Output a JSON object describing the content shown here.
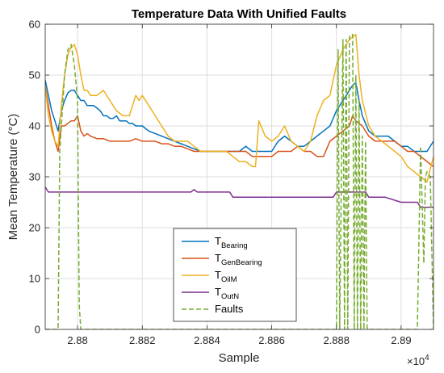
{
  "chart_data": {
    "type": "line",
    "title": "Temperature Data With Unified Faults",
    "xlabel": "Sample",
    "ylabel": "Mean Temperature (°C)",
    "x_exponent_label": "×10",
    "x_exponent_power": "4",
    "xlim": [
      28790,
      28910
    ],
    "ylim": [
      0,
      60
    ],
    "xticks": [
      28800,
      28820,
      28840,
      28860,
      28880,
      28900
    ],
    "xtick_labels": [
      "2.88",
      "2.882",
      "2.884",
      "2.886",
      "2.888",
      "2.89"
    ],
    "yticks": [
      0,
      10,
      20,
      30,
      40,
      50,
      60
    ],
    "ytick_labels": [
      "0",
      "10",
      "20",
      "30",
      "40",
      "50",
      "60"
    ],
    "grid": true,
    "legend_position": "bottom-center",
    "series": [
      {
        "name": "T_Bearing",
        "label_main": "T",
        "label_sub": "Bearing",
        "color": "#0072BD",
        "style": "solid",
        "x": [
          28790,
          28791,
          28792,
          28793,
          28794,
          28795,
          28796,
          28797,
          28798,
          28799,
          28800,
          28801,
          28802,
          28803,
          28804,
          28805,
          28806,
          28807,
          28808,
          28809,
          28810,
          28811,
          28812,
          28813,
          28814,
          28815,
          28816,
          28817,
          28818,
          28819,
          28820,
          28822,
          28824,
          28826,
          28828,
          28830,
          28832,
          28834,
          28836,
          28838,
          28840,
          28842,
          28844,
          28846,
          28848,
          28850,
          28852,
          28854,
          28856,
          28858,
          28860,
          28862,
          28864,
          28866,
          28868,
          28870,
          28872,
          28874,
          28876,
          28878,
          28880,
          28882,
          28884,
          28885,
          28886,
          28887,
          28888,
          28890,
          28892,
          28894,
          28896,
          28898,
          28900,
          28902,
          28904,
          28906,
          28908,
          28910
        ],
        "y": [
          49,
          46,
          43,
          41,
          39,
          43,
          45,
          46.5,
          47,
          47,
          46,
          45,
          45,
          44,
          44,
          44,
          43.5,
          43,
          42,
          42,
          41.5,
          41.5,
          42,
          41,
          41,
          41,
          40.5,
          40.5,
          40,
          40,
          40,
          39,
          38.5,
          38,
          37.5,
          37,
          36.5,
          36,
          35.5,
          35,
          35,
          35,
          35,
          35,
          35,
          35,
          36,
          35,
          35,
          35,
          35,
          37,
          38,
          37,
          36,
          36,
          37,
          38,
          39,
          40,
          43,
          45,
          47,
          48,
          48.5,
          45,
          42,
          39,
          38,
          38,
          38,
          37,
          36,
          36,
          35,
          35,
          35,
          37
        ]
      },
      {
        "name": "T_GenBearing",
        "label_main": "T",
        "label_sub": "GenBearing",
        "color": "#D95319",
        "style": "solid",
        "x": [
          28790,
          28791,
          28792,
          28793,
          28794,
          28795,
          28796,
          28797,
          28798,
          28799,
          28800,
          28801,
          28802,
          28803,
          28804,
          28806,
          28808,
          28810,
          28812,
          28814,
          28816,
          28818,
          28820,
          28822,
          28824,
          28826,
          28828,
          28830,
          28832,
          28834,
          28836,
          28838,
          28840,
          28842,
          28844,
          28846,
          28848,
          28850,
          28852,
          28854,
          28856,
          28858,
          28860,
          28862,
          28864,
          28866,
          28868,
          28870,
          28872,
          28874,
          28876,
          28878,
          28880,
          28882,
          28884,
          28885,
          28886,
          28888,
          28890,
          28892,
          28894,
          28896,
          28898,
          28900,
          28902,
          28904,
          28906,
          28908,
          28910
        ],
        "y": [
          48,
          44,
          40,
          37,
          35,
          40,
          40,
          40.5,
          41,
          41,
          42,
          39,
          38,
          38.5,
          38,
          37.5,
          37.5,
          37,
          37,
          37,
          37,
          37.5,
          37,
          37,
          37,
          36.5,
          36.5,
          36,
          36,
          35.5,
          35,
          35,
          35,
          35,
          35,
          35,
          35,
          35,
          35,
          34,
          34,
          34,
          34,
          35,
          35,
          35,
          36,
          35,
          35,
          34,
          34,
          37,
          38,
          39,
          40,
          42,
          41,
          40,
          38,
          37,
          37,
          37,
          37,
          36,
          35,
          35,
          34,
          33,
          32
        ]
      },
      {
        "name": "T_OilM",
        "label_main": "T",
        "label_sub": "OilM",
        "color": "#EDB120",
        "style": "solid",
        "x": [
          28790,
          28791,
          28792,
          28793,
          28794,
          28795,
          28796,
          28797,
          28798,
          28799,
          28800,
          28801,
          28802,
          28803,
          28804,
          28806,
          28808,
          28810,
          28812,
          28814,
          28816,
          28818,
          28819,
          28820,
          28822,
          28824,
          28826,
          28828,
          28830,
          28832,
          28834,
          28836,
          28838,
          28840,
          28842,
          28844,
          28846,
          28848,
          28850,
          28852,
          28854,
          28855,
          28856,
          28858,
          28860,
          28862,
          28864,
          28866,
          28868,
          28870,
          28872,
          28874,
          28876,
          28878,
          28880,
          28882,
          28884,
          28885,
          28886,
          28887,
          28888,
          28890,
          28892,
          28894,
          28896,
          28898,
          28900,
          28902,
          28904,
          28906,
          28908,
          28910
        ],
        "y": [
          48,
          42,
          39,
          37,
          36,
          44,
          50,
          54,
          55.5,
          56,
          54,
          50,
          47,
          47,
          46,
          46,
          47,
          45,
          43,
          42,
          42,
          46,
          45,
          46,
          44,
          42,
          40,
          38,
          37,
          37,
          37,
          36,
          35,
          35,
          35,
          35,
          35,
          34,
          33,
          33,
          32,
          32,
          41,
          38,
          37,
          38,
          40,
          37,
          36,
          35,
          37,
          42,
          45,
          46,
          52,
          55,
          57,
          57.5,
          58,
          50,
          45,
          40,
          38,
          37,
          36,
          35,
          34,
          32,
          31,
          30,
          29,
          34
        ]
      },
      {
        "name": "T_OutN",
        "label_main": "T",
        "label_sub": "OutN",
        "color": "#7E2F8E",
        "style": "solid",
        "x": [
          28790,
          28791,
          28800,
          28810,
          28820,
          28830,
          28835,
          28836,
          28837,
          28840,
          28847,
          28848,
          28850,
          28860,
          28870,
          28879,
          28880,
          28885,
          28889,
          28890,
          28895,
          28900,
          28905,
          28906,
          28909,
          28910
        ],
        "y": [
          28,
          27,
          27,
          27,
          27,
          27,
          27,
          27.5,
          27,
          27,
          27,
          26,
          26,
          26,
          26,
          26,
          27,
          27,
          27,
          26,
          26,
          25,
          25,
          24,
          24,
          24
        ]
      },
      {
        "name": "Faults",
        "label_main": "Faults",
        "label_sub": "",
        "color": "#77AC30",
        "style": "dashed",
        "x": [
          28790,
          28794,
          28794.5,
          28796,
          28797,
          28798,
          28799,
          28800,
          28800.5,
          28801,
          28810,
          28820,
          28830,
          28840,
          28850,
          28860,
          28870,
          28878,
          28880,
          28880.5,
          28881,
          28882,
          28882.5,
          28883,
          28883.5,
          28884,
          28884.5,
          28885,
          28885.5,
          28886,
          28886.5,
          28887,
          28887.5,
          28888,
          28888.5,
          28889,
          28889.5,
          28890,
          28892,
          28894,
          28895,
          28896,
          28897,
          28898,
          28899,
          28900,
          28901,
          28902,
          28903,
          28904,
          28905,
          28906,
          28907,
          28907.5,
          28908,
          28909,
          28910
        ],
        "y": [
          0,
          0,
          35,
          50,
          55,
          56,
          52,
          45,
          5,
          0,
          0,
          0,
          0,
          0,
          0,
          0,
          0,
          0,
          0,
          55,
          0,
          57,
          0,
          57,
          0,
          57.5,
          58,
          58,
          0,
          50,
          0,
          45,
          0,
          38,
          0,
          37,
          0,
          0,
          0,
          0,
          0,
          0,
          0,
          0,
          0,
          0,
          0,
          0,
          0,
          0,
          0,
          36,
          13,
          30,
          31,
          30,
          0
        ]
      }
    ]
  }
}
